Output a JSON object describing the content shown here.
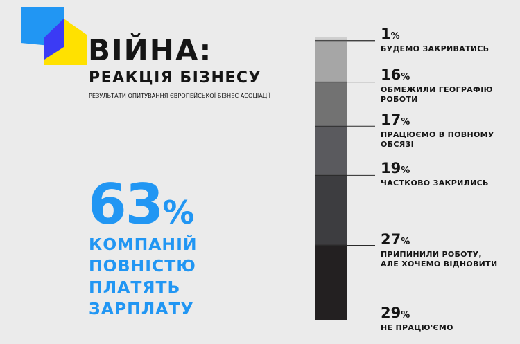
{
  "header": {
    "title": "ВІЙНА:",
    "subtitle": "РЕАКЦІЯ БІЗНЕСУ",
    "source": "РЕЗУЛЬТАТИ ОПИТУВАННЯ ЄВРОПЕЙСЬКОЇ БІЗНЕС АСОЦІАЦІЇ"
  },
  "highlight": {
    "value": "63",
    "unit": "%",
    "lines": [
      "КОМПАНІЙ",
      "ПОВНІСТЮ",
      "ПЛАТЯТЬ",
      "ЗАРПЛАТУ"
    ],
    "color": "#2196f3"
  },
  "logo": {
    "colors": [
      "#2196f3",
      "#3b3bf5",
      "#ffe100"
    ]
  },
  "chart_data": {
    "type": "bar",
    "stacked": true,
    "categories": [
      "БУДЕМО ЗАКРИВАТИСЬ",
      "ОБМЕЖИЛИ ГЕОГРАФІЮ РОБОТИ",
      "ПРАЦЮЄМО В ПОВНОМУ ОБСЯЗІ",
      "ЧАСТКОВО ЗАКРИЛИСЬ",
      "ПРИПИНИЛИ РОБОТУ, АЛЕ ХОЧЕМО ВІДНОВИТИ",
      "НЕ ПРАЦЮ'ЄМО"
    ],
    "values": [
      1,
      16,
      17,
      19,
      27,
      29
    ],
    "unit": "%",
    "labels": [
      {
        "value": "1",
        "text": [
          "БУДЕМО ЗАКРИВАТИСЬ"
        ]
      },
      {
        "value": "16",
        "text": [
          "ОБМЕЖИЛИ ГЕОГРАФІЮ",
          "РОБОТИ"
        ]
      },
      {
        "value": "17",
        "text": [
          "ПРАЦЮЄМО В ПОВНОМУ",
          "ОБСЯЗІ"
        ]
      },
      {
        "value": "19",
        "text": [
          "ЧАСТКОВО ЗАКРИЛИСЬ"
        ]
      },
      {
        "value": "27",
        "text": [
          "ПРИПИНИЛИ РОБОТУ,",
          "АЛЕ ХОЧЕМО ВІДНОВИТИ"
        ]
      },
      {
        "value": "29",
        "text": [
          "НЕ ПРАЦЮ'ЄМО"
        ]
      }
    ],
    "colors": [
      "#cfcfcf",
      "#a6a6a6",
      "#727272",
      "#5a5a5e",
      "#3d3d40",
      "#232021"
    ]
  }
}
